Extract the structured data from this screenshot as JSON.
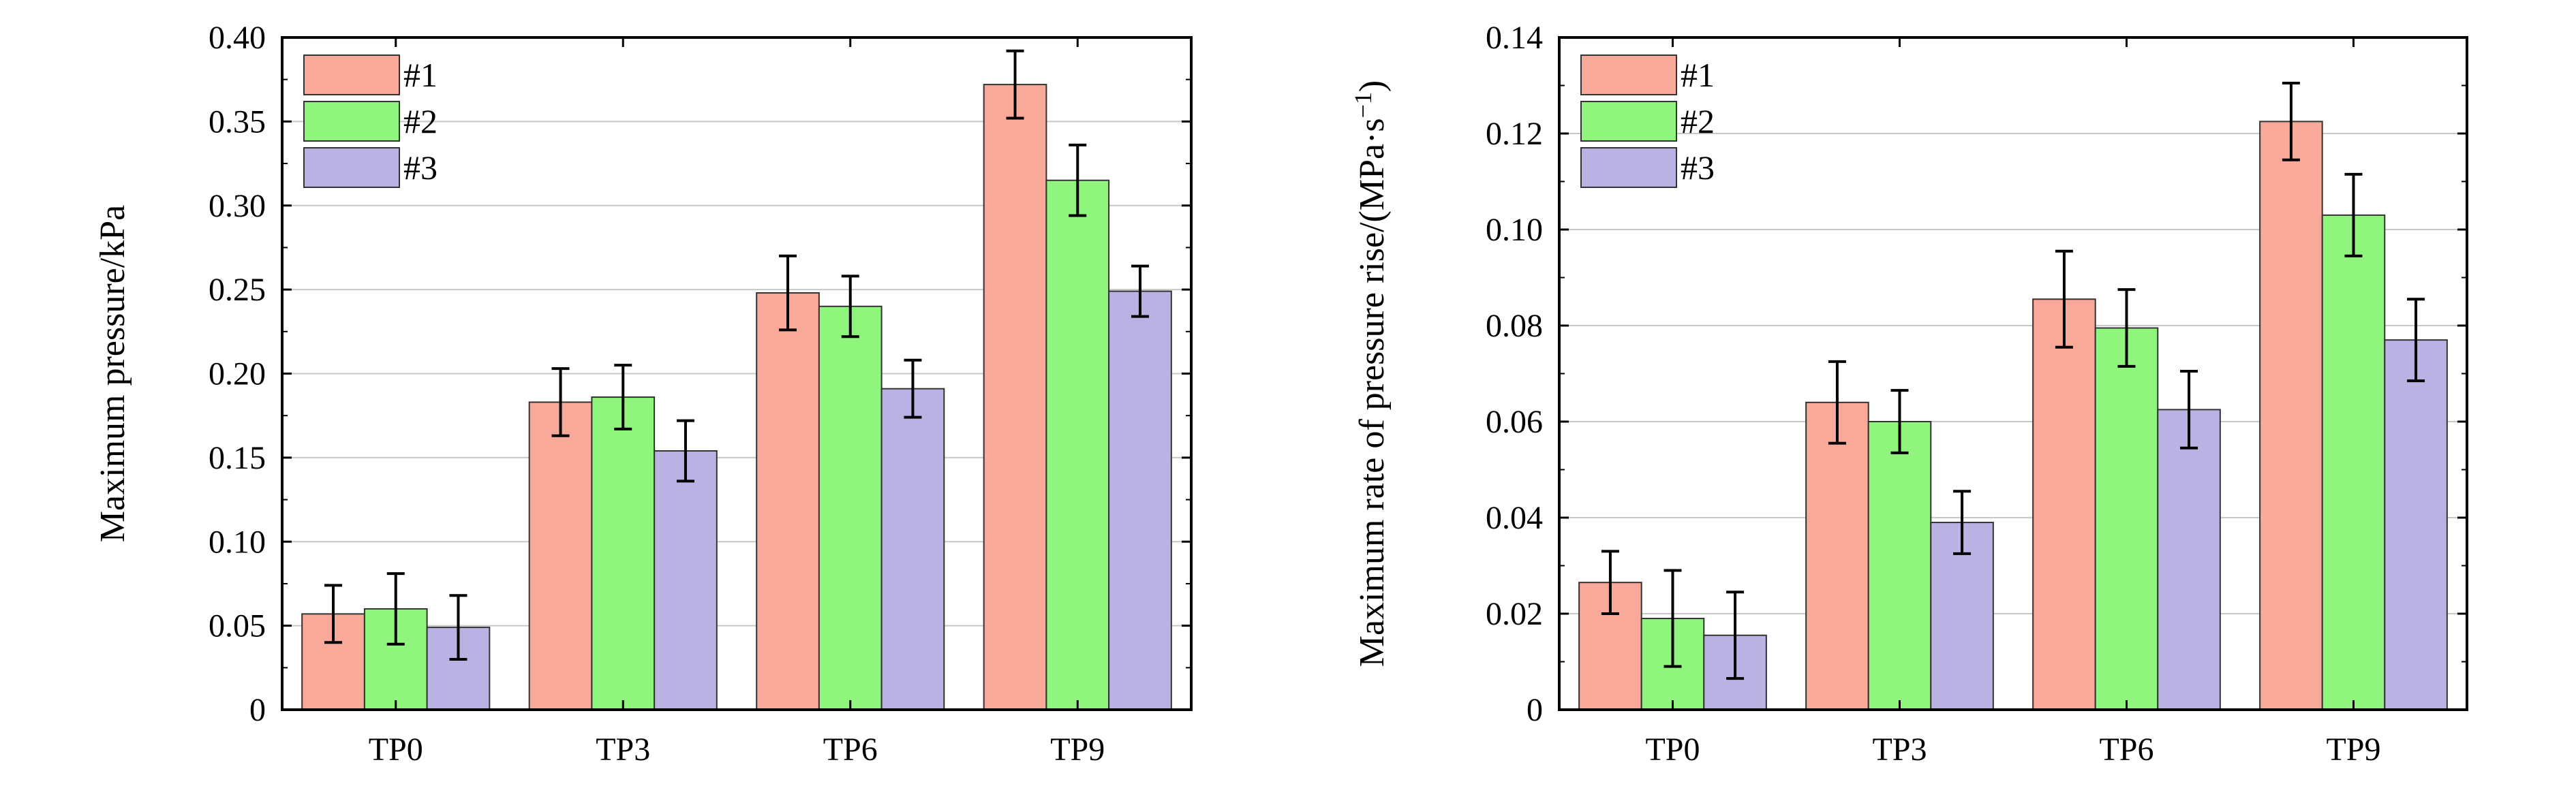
{
  "chart_data": [
    {
      "type": "bar",
      "title": "",
      "xlabel": "",
      "ylabel": "Maximum pressure/kPa",
      "categories": [
        "TP0",
        "TP3",
        "TP6",
        "TP9"
      ],
      "ylim": [
        0,
        0.4
      ],
      "yticks": [
        0,
        0.05,
        0.1,
        0.15,
        0.2,
        0.25,
        0.3,
        0.35,
        0.4
      ],
      "ytick_labels": [
        "0",
        "0.05",
        "0.10",
        "0.15",
        "0.20",
        "0.25",
        "0.30",
        "0.35",
        "0.40"
      ],
      "grid": true,
      "legend_position": "top-left",
      "series": [
        {
          "name": "#1",
          "color": "#f8a99a",
          "values": [
            0.057,
            0.183,
            0.248,
            0.372
          ],
          "errors": [
            0.017,
            0.02,
            0.022,
            0.02
          ]
        },
        {
          "name": "#2",
          "color": "#8ff57c",
          "values": [
            0.06,
            0.186,
            0.24,
            0.315
          ],
          "errors": [
            0.021,
            0.019,
            0.018,
            0.021
          ]
        },
        {
          "name": "#3",
          "color": "#bab2e3",
          "values": [
            0.049,
            0.154,
            0.191,
            0.249
          ],
          "errors": [
            0.019,
            0.018,
            0.017,
            0.015
          ]
        }
      ]
    },
    {
      "type": "bar",
      "title": "",
      "xlabel": "",
      "ylabel": "Maximum rate of pressure rise/(MPa·s",
      "ylabel_superscript": "−1",
      "ylabel_suffix": ")",
      "categories": [
        "TP0",
        "TP3",
        "TP6",
        "TP9"
      ],
      "ylim": [
        0,
        0.14
      ],
      "yticks": [
        0,
        0.02,
        0.04,
        0.06,
        0.08,
        0.1,
        0.12,
        0.14
      ],
      "ytick_labels": [
        "0",
        "0.02",
        "0.04",
        "0.06",
        "0.08",
        "0.10",
        "0.12",
        "0.14"
      ],
      "grid": true,
      "legend_position": "top-left",
      "series": [
        {
          "name": "#1",
          "color": "#f8a99a",
          "values": [
            0.0265,
            0.064,
            0.0855,
            0.1225
          ],
          "errors": [
            0.0065,
            0.0085,
            0.01,
            0.008
          ]
        },
        {
          "name": "#2",
          "color": "#8ff57c",
          "values": [
            0.019,
            0.06,
            0.0795,
            0.103
          ],
          "errors": [
            0.01,
            0.0065,
            0.008,
            0.0085
          ]
        },
        {
          "name": "#3",
          "color": "#bab2e3",
          "values": [
            0.0155,
            0.039,
            0.0625,
            0.077
          ],
          "errors": [
            0.009,
            0.0065,
            0.008,
            0.0085
          ]
        }
      ]
    }
  ]
}
